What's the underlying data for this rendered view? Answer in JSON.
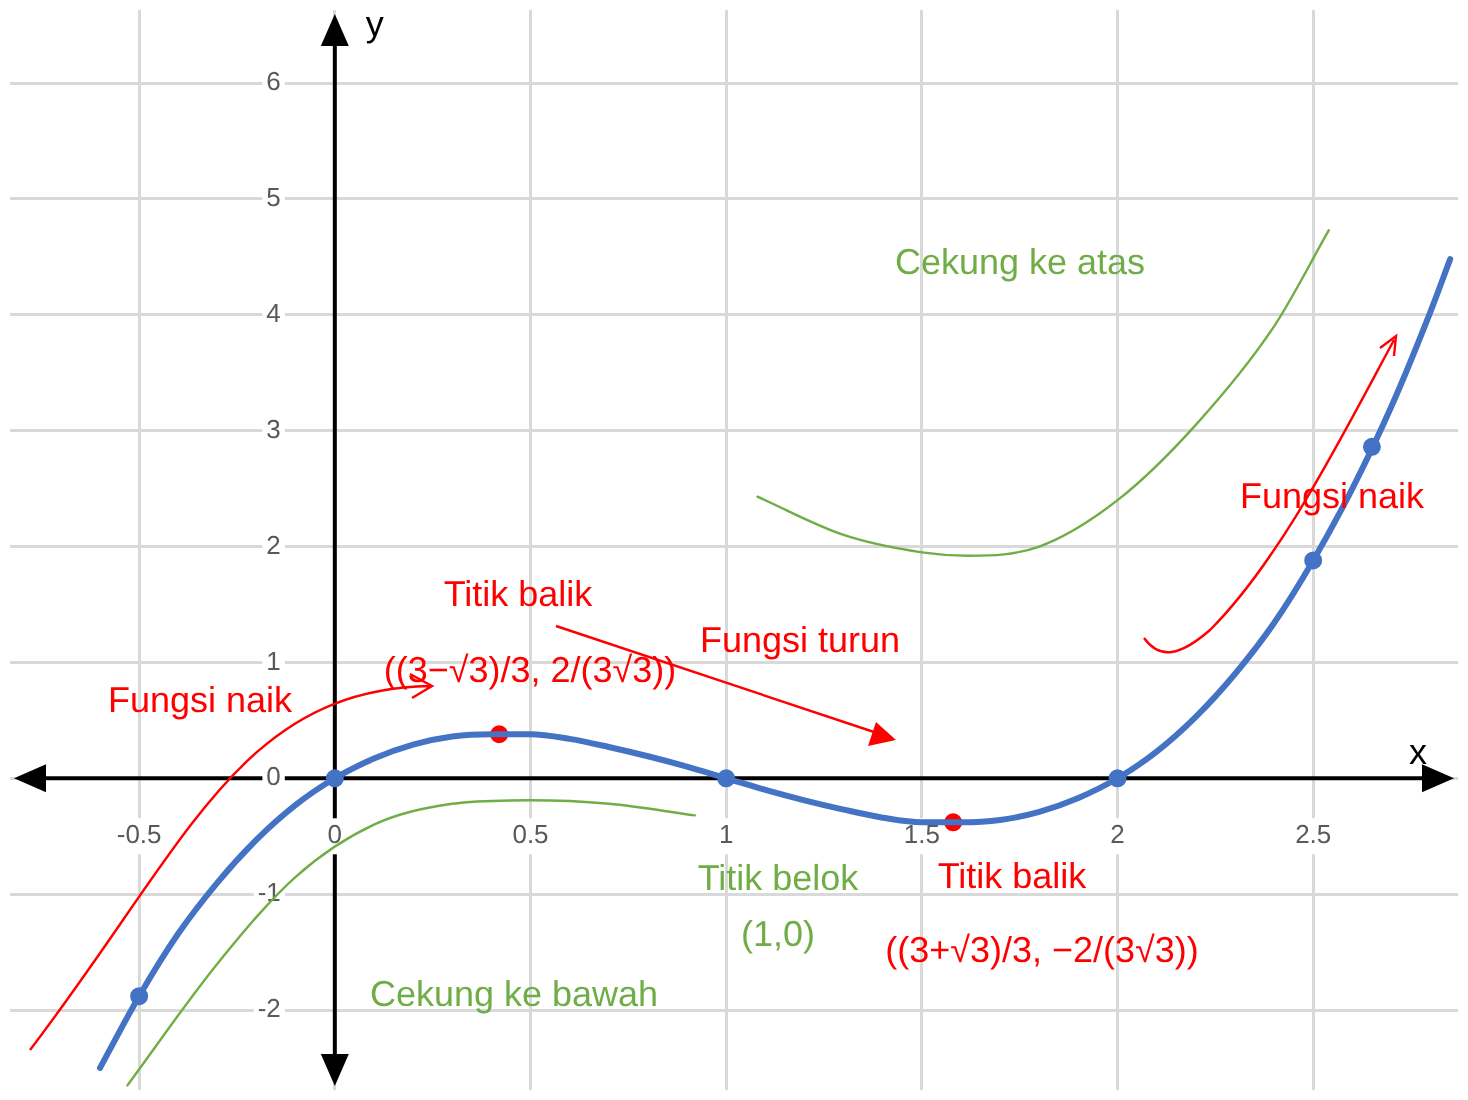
{
  "chart_data": {
    "type": "line",
    "xlabel": "x",
    "ylabel": "y",
    "xlim": [
      -0.83,
      2.87
    ],
    "ylim": [
      -2.69,
      6.63
    ],
    "xticks": [
      -0.5,
      0,
      0.5,
      1,
      1.5,
      2,
      2.5
    ],
    "yticks": [
      -2,
      -1,
      0,
      1,
      2,
      3,
      4,
      5,
      6
    ],
    "grid": true,
    "legend": false,
    "marker": "none",
    "line_style": "solid",
    "series": [
      {
        "color": "#4472c4",
        "x": [
          -0.6,
          -0.5,
          -0.4,
          -0.3,
          -0.2,
          -0.1,
          0,
          0.1,
          0.2,
          0.3,
          0.4,
          0.5,
          0.6,
          0.7,
          0.8,
          0.9,
          1,
          1.1,
          1.2,
          1.3,
          1.4,
          1.5,
          1.6,
          1.7,
          1.8,
          1.9,
          2,
          2.1,
          2.2,
          2.3,
          2.4,
          2.5,
          2.6,
          2.7,
          2.8,
          2.85
        ],
        "values": [
          -2.5,
          -1.88,
          -1.34,
          -0.9,
          -0.53,
          -0.23,
          0,
          0.17,
          0.29,
          0.36,
          0.38,
          0.38,
          0.34,
          0.27,
          0.19,
          0.1,
          0,
          -0.1,
          -0.19,
          -0.27,
          -0.34,
          -0.38,
          -0.38,
          -0.36,
          -0.29,
          -0.17,
          0,
          0.23,
          0.53,
          0.9,
          1.34,
          1.88,
          2.5,
          3.21,
          4.03,
          4.48
        ]
      },
      {
        "type": "scatter",
        "color": "#4472c4",
        "marker": "circle",
        "x": [
          -0.5,
          0,
          1,
          2,
          2.5,
          2.65
        ],
        "values": [
          -1.88,
          0,
          0,
          0,
          1.88,
          2.86
        ]
      },
      {
        "type": "scatter",
        "color": "#ff0000",
        "marker": "circle",
        "x": [
          0.42,
          1.58
        ],
        "values": [
          0.38,
          -0.38
        ]
      },
      {
        "type": "line",
        "color": "#70ad47",
        "x": [
          1.08,
          1.3,
          1.5,
          1.62,
          1.8,
          2.0,
          2.2,
          2.4,
          2.54
        ],
        "values": [
          2.43,
          2.1,
          1.95,
          1.92,
          2.0,
          2.4,
          3.05,
          3.9,
          4.73
        ]
      },
      {
        "type": "line",
        "color": "#70ad47",
        "x": [
          -0.53,
          -0.3,
          -0.1,
          0.1,
          0.3,
          0.5,
          0.7,
          0.92
        ],
        "values": [
          -2.65,
          -1.6,
          -0.85,
          -0.4,
          -0.22,
          -0.19,
          -0.22,
          -0.32
        ]
      }
    ],
    "annotations": [
      "Fungsi naik",
      "Titik balik",
      "((3−√3)/3, 2/(3√3))",
      "Fungsi turun",
      "Cekung ke atas",
      "Fungsi naik",
      "Titik belok\n(1,0)",
      "Titik balik",
      "((3+√3)/3, −2/(3√3))",
      "Cekung ke bawah"
    ]
  }
}
